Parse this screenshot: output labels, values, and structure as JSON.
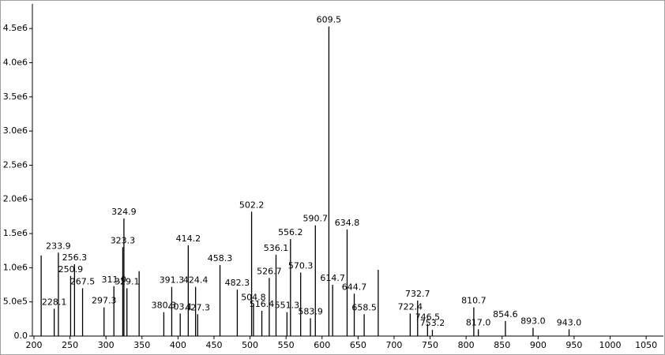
{
  "chart_data": {
    "type": "stick",
    "x": [
      210,
      228.1,
      233.9,
      250.9,
      256.3,
      267.5,
      297.3,
      311.0,
      323.3,
      324.9,
      329.1,
      346,
      380.3,
      391.3,
      403.1,
      414.2,
      424.4,
      427.3,
      458.3,
      482.3,
      502.2,
      504.8,
      516.4,
      526.7,
      536.1,
      551.3,
      556.2,
      570.3,
      583.9,
      590.7,
      609.5,
      614.7,
      634.8,
      644.7,
      658.5,
      678,
      722.4,
      732.7,
      746.5,
      753.2,
      810.7,
      817.0,
      854.6,
      893.0,
      943.0
    ],
    "values": [
      1180000,
      400000,
      1220000,
      880000,
      1050000,
      700000,
      420000,
      730000,
      1300000,
      1720000,
      700000,
      950000,
      350000,
      720000,
      330000,
      1330000,
      720000,
      320000,
      1040000,
      680000,
      1820000,
      470000,
      370000,
      850000,
      1190000,
      350000,
      1420000,
      930000,
      260000,
      1620000,
      4530000,
      750000,
      1560000,
      620000,
      320000,
      970000,
      330000,
      520000,
      180000,
      90000,
      420000,
      100000,
      220000,
      120000,
      100000
    ],
    "peak_labels": [
      null,
      "228.1",
      "233.9",
      "250.9",
      "256.3",
      "267.5",
      "297.3",
      "311.0",
      "323.3",
      "324.9",
      "329.1",
      null,
      "380.3",
      "391.3",
      "403.1",
      "414.2",
      "424.4",
      "427.3",
      "458.3",
      "482.3",
      "502.2",
      "504.8",
      "516.4",
      "526.7",
      "536.1",
      "551.3",
      "556.2",
      "570.3",
      "583.9",
      "590.7",
      "609.5",
      "614.7",
      "634.8",
      "644.7",
      "658.5",
      null,
      "722.4",
      "732.7",
      "746.5",
      "753.2",
      "810.7",
      "817.0",
      "854.6",
      "893.0",
      "943.0"
    ],
    "color": "#000000",
    "xlim": [
      197.8,
      1074
    ],
    "xticks": [
      200,
      250,
      300,
      350,
      400,
      450,
      500,
      550,
      600,
      650,
      700,
      750,
      800,
      850,
      900,
      950,
      1000,
      1050
    ],
    "ylim": [
      0,
      4860000
    ],
    "yticks": [
      {
        "value": 0,
        "label": "0.0"
      },
      {
        "value": 500000,
        "label": "5.0e5"
      },
      {
        "value": 1000000,
        "label": "1.0e6"
      },
      {
        "value": 1500000,
        "label": "1.5e6"
      },
      {
        "value": 2000000,
        "label": "2.0e6"
      },
      {
        "value": 2500000,
        "label": "2.5e6"
      },
      {
        "value": 3000000,
        "label": "3.0e6"
      },
      {
        "value": 3500000,
        "label": "3.5e6"
      },
      {
        "value": 4000000,
        "label": "4.0e6"
      },
      {
        "value": 4500000,
        "label": "4.5e6"
      }
    ]
  }
}
